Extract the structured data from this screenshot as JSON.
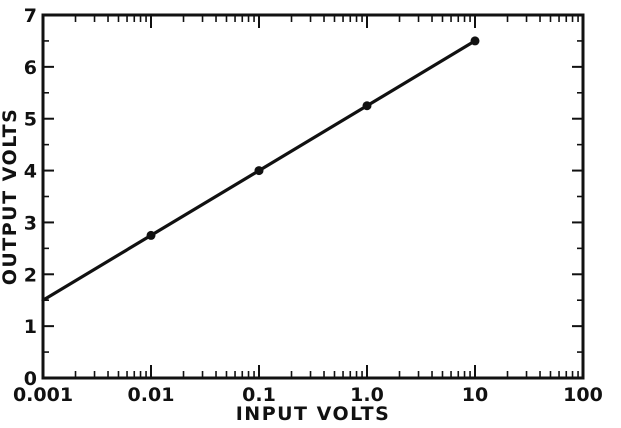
{
  "chart_data": {
    "type": "line",
    "title": "",
    "xlabel": "INPUT VOLTS",
    "ylabel": "OUTPUT VOLTS",
    "x_scale": "log",
    "xlim": [
      0.001,
      100
    ],
    "ylim": [
      0,
      7
    ],
    "x_tick_labels": [
      "0.001",
      "0.01",
      "0.1",
      "1.0",
      "10",
      "100"
    ],
    "x_tick_values": [
      0.001,
      0.01,
      0.1,
      1.0,
      10,
      100
    ],
    "y_tick_labels": [
      "0",
      "1",
      "2",
      "3",
      "4",
      "5",
      "6",
      "7"
    ],
    "y_tick_values": [
      0,
      1,
      2,
      3,
      4,
      5,
      6,
      7
    ],
    "grid": false,
    "line": {
      "x": [
        0.001,
        10
      ],
      "y": [
        1.5,
        6.5
      ]
    },
    "points": [
      {
        "x": 0.01,
        "y": 2.75
      },
      {
        "x": 0.1,
        "y": 4.0
      },
      {
        "x": 1.0,
        "y": 5.25
      },
      {
        "x": 10,
        "y": 6.5
      }
    ],
    "colors": {
      "ink": "#111111",
      "background": "#ffffff"
    }
  }
}
